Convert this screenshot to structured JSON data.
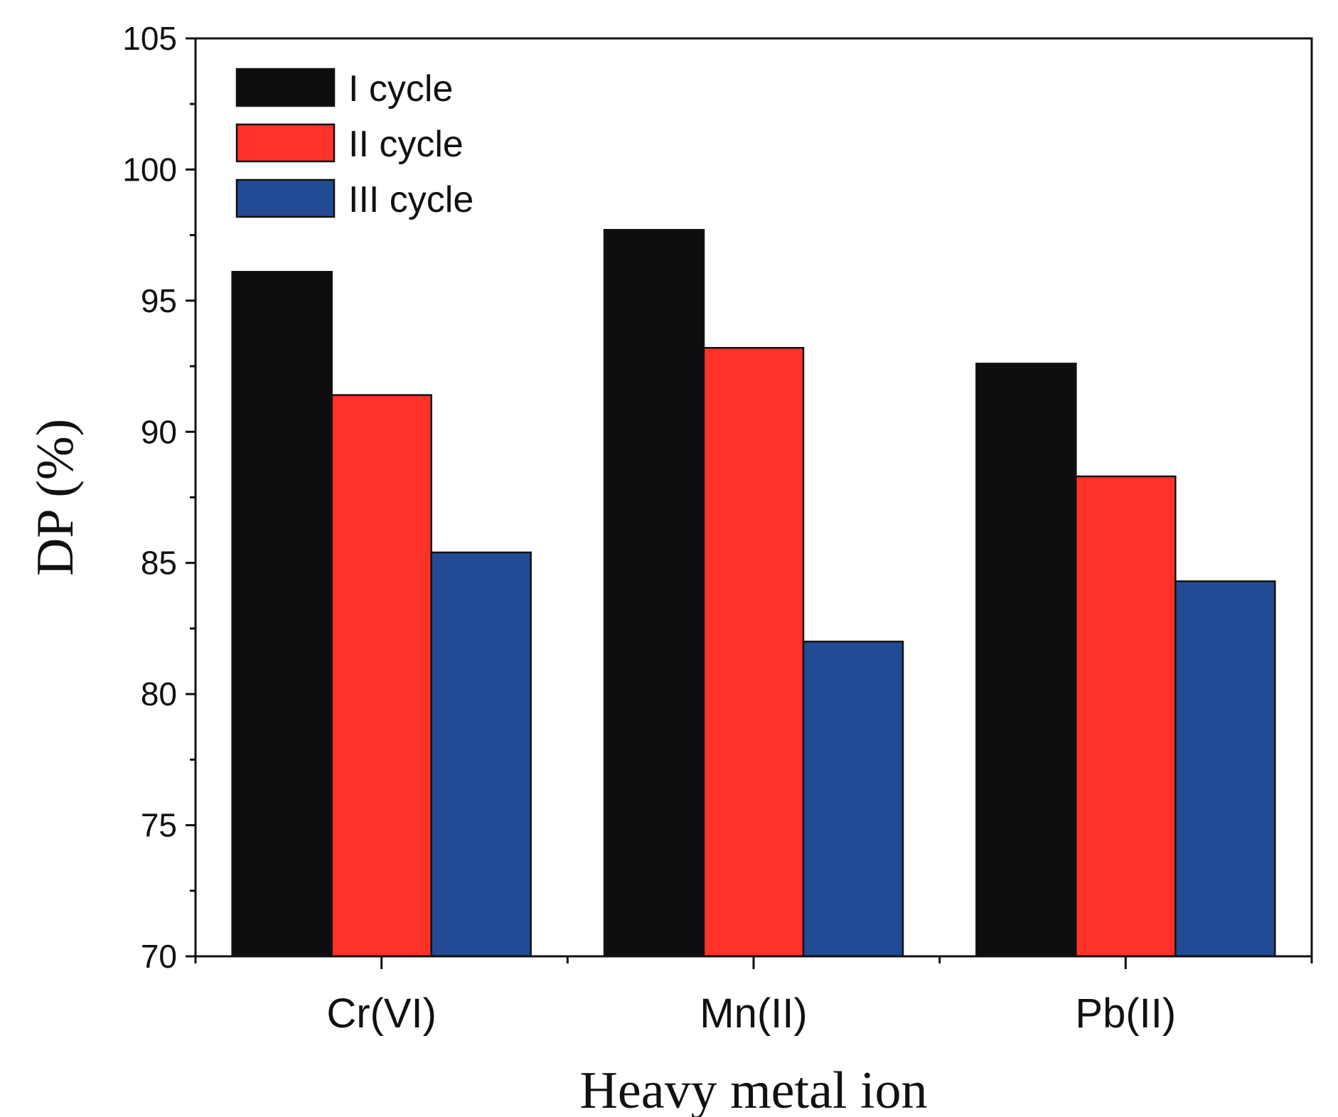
{
  "chart_data": {
    "type": "bar",
    "title": "",
    "xlabel": "Heavy metal ion",
    "ylabel": "DP (%)",
    "categories": [
      "Cr(VI)",
      "Mn(II)",
      "Pb(II)"
    ],
    "series": [
      {
        "name": "I cycle",
        "color": "#0e0e10",
        "values": [
          96.1,
          97.7,
          92.6
        ]
      },
      {
        "name": "II cycle",
        "color": "#ff3129",
        "values": [
          91.4,
          93.2,
          88.3
        ]
      },
      {
        "name": "III cycle",
        "color": "#234a94",
        "values": [
          85.4,
          82.0,
          84.3
        ]
      }
    ],
    "ylim": [
      70,
      105
    ],
    "yticks": [
      70,
      75,
      80,
      85,
      90,
      95,
      100,
      105
    ],
    "grid": false,
    "legend_position": "top-left"
  }
}
